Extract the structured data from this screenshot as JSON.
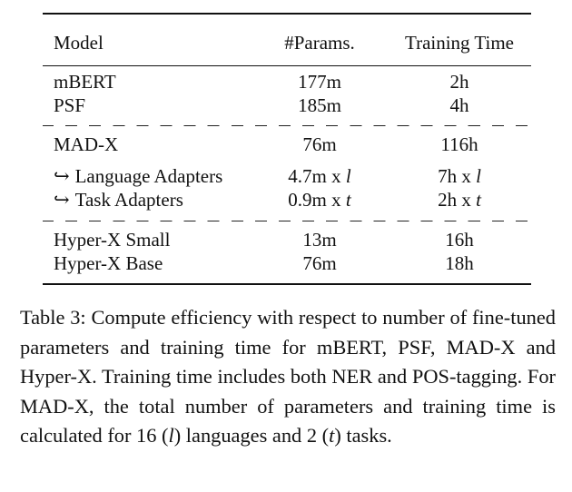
{
  "table": {
    "headers": {
      "model": "Model",
      "params": "#Params.",
      "time": "Training Time"
    },
    "rows": [
      {
        "model": "mBERT",
        "params": "177m",
        "time": "2h"
      },
      {
        "model": "PSF",
        "params": "185m",
        "time": "4h"
      },
      {
        "model": "MAD-X",
        "params": "76m",
        "time": "116h"
      },
      {
        "model_hook": "↪",
        "model": "Language Adapters",
        "params": "4.7m x ",
        "params_var": "l",
        "time": "7h x ",
        "time_var": "l"
      },
      {
        "model_hook": "↪",
        "model": "Task Adapters",
        "params": "0.9m x ",
        "params_var": "t",
        "time": "2h x ",
        "time_var": "t"
      },
      {
        "model": "Hyper-X Small",
        "params": "13m",
        "time": "16h"
      },
      {
        "model": "Hyper-X Base",
        "params": "76m",
        "time": "18h"
      }
    ]
  },
  "caption": {
    "part1": "Table 3: Compute efficiency with respect to number of fine-tuned parameters and training time for mBERT, PSF, MAD-X and Hyper-X. Training time includes both NER and POS-tagging. For MAD-X, the total number of parameters and training time is calculated for 16 (",
    "var1": "l",
    "part2": ") languages and 2 (",
    "var2": "t",
    "part3": ") tasks."
  }
}
